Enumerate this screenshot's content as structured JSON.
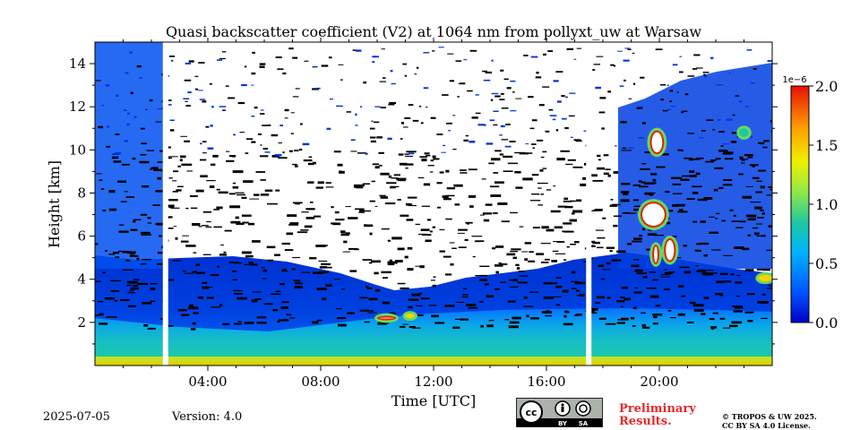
{
  "chart_data": {
    "type": "heatmap",
    "title": "Quasi backscatter coefficient (V2) at 1064 nm from pollyxt_uw at Warsaw",
    "xlabel": "Time [UTC]",
    "ylabel": "Height [km]",
    "xlim": [
      "00:00",
      "24:00"
    ],
    "ylim": [
      0,
      15
    ],
    "x_ticks": [
      "04:00",
      "08:00",
      "12:00",
      "16:00",
      "20:00"
    ],
    "y_ticks": [
      "2",
      "4",
      "6",
      "8",
      "10",
      "12",
      "14"
    ],
    "colorbar": {
      "scale_label": "1e−6",
      "range": [
        0.0,
        2.0
      ],
      "ticks": [
        "0.0",
        "0.5",
        "1.0",
        "1.5",
        "2.0"
      ],
      "colormap": "jet"
    },
    "colors": {
      "low": "#0033dd",
      "mid": "#1ec8a0",
      "high": "#ffd000",
      "max": "#e02000",
      "no_signal": "#ffffff",
      "cloud_mask": "#000000"
    },
    "features": [
      {
        "name": "boundary layer aerosol",
        "time_range": [
          "00:00",
          "24:00"
        ],
        "height_range_km": [
          0.0,
          2.5
        ],
        "value": 0.5
      },
      {
        "name": "surface layer",
        "time_range": [
          "00:00",
          "24:00"
        ],
        "height_range_km": [
          0.0,
          0.3
        ],
        "value": 0.9
      },
      {
        "name": "free troposphere",
        "time_range": [
          "00:00",
          "24:00"
        ],
        "height_range_km": [
          2.5,
          6.0
        ],
        "value": 0.15
      },
      {
        "name": "cloud",
        "time_range": [
          "10:00",
          "10:40"
        ],
        "height_range_km": [
          2.1,
          2.3
        ],
        "value": 2.0
      },
      {
        "name": "cloud",
        "time_range": [
          "11:00",
          "11:20"
        ],
        "height_range_km": [
          2.2,
          2.4
        ],
        "value": 1.2
      },
      {
        "name": "cloud",
        "time_range": [
          "19:20",
          "20:15"
        ],
        "height_range_km": [
          6.4,
          7.6
        ],
        "value": 2.0
      },
      {
        "name": "cloud",
        "time_range": [
          "19:40",
          "20:10"
        ],
        "height_range_km": [
          9.8,
          10.9
        ],
        "value": 2.0
      },
      {
        "name": "cloud",
        "time_range": [
          "19:45",
          "20:00"
        ],
        "height_range_km": [
          4.7,
          5.6
        ],
        "value": 2.0
      },
      {
        "name": "cloud",
        "time_range": [
          "20:10",
          "20:35"
        ],
        "height_range_km": [
          4.8,
          5.9
        ],
        "value": 2.0
      },
      {
        "name": "cloud",
        "time_range": [
          "22:50",
          "23:10"
        ],
        "height_range_km": [
          10.6,
          11.0
        ],
        "value": 1.0
      },
      {
        "name": "cloud",
        "time_range": [
          "23:30",
          "24:00"
        ],
        "height_range_km": [
          3.9,
          4.2
        ],
        "value": 1.5
      }
    ],
    "data_gaps": [
      "02:30",
      "17:30"
    ]
  },
  "footer": {
    "date": "2025-07-05",
    "version": "Version: 4.0",
    "badge": {
      "by": "BY",
      "sa": "SA"
    },
    "preliminary": [
      "Preliminary",
      "Results."
    ],
    "copyright": [
      "© TROPOS & UW 2025.",
      "CC BY SA 4.0 License."
    ]
  }
}
